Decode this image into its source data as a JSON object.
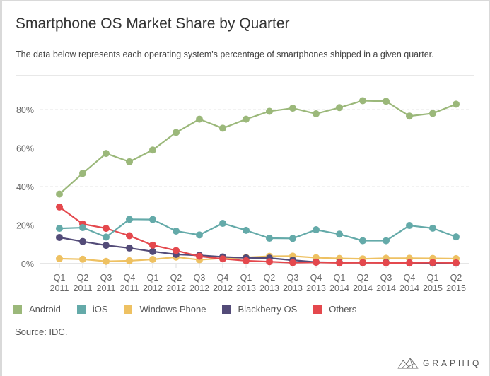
{
  "header": {
    "title": "Smartphone OS Market Share by Quarter",
    "subtitle": "The data below represents each operating system's percentage of smartphones shipped in a given quarter."
  },
  "source": {
    "label": "Source: ",
    "link_text": "IDC",
    "suffix": "."
  },
  "brand": {
    "name": "GRAPHIQ",
    "icon": "graphiq-logo-icon"
  },
  "chart_data": {
    "type": "line",
    "title": "Smartphone OS Market Share by Quarter",
    "xlabel": "",
    "ylabel": "",
    "ylim": [
      0,
      80
    ],
    "yticks": [
      0,
      20,
      40,
      60,
      80
    ],
    "ytick_labels": [
      "0%",
      "20%",
      "40%",
      "60%",
      "80%"
    ],
    "grid": true,
    "legend_position": "bottom",
    "categories": [
      [
        "Q1",
        "2011"
      ],
      [
        "Q2",
        "2011"
      ],
      [
        "Q3",
        "2011"
      ],
      [
        "Q4",
        "2011"
      ],
      [
        "Q1",
        "2012"
      ],
      [
        "Q2",
        "2012"
      ],
      [
        "Q3",
        "2012"
      ],
      [
        "Q4",
        "2012"
      ],
      [
        "Q1",
        "2013"
      ],
      [
        "Q2",
        "2013"
      ],
      [
        "Q3",
        "2013"
      ],
      [
        "Q4",
        "2013"
      ],
      [
        "Q1",
        "2014"
      ],
      [
        "Q2",
        "2014"
      ],
      [
        "Q3",
        "2014"
      ],
      [
        "Q4",
        "2014"
      ],
      [
        "Q1",
        "2015"
      ],
      [
        "Q2",
        "2015"
      ]
    ],
    "series": [
      {
        "name": "Android",
        "color": "#9bb87a",
        "values": [
          36.1,
          46.9,
          57.2,
          52.9,
          59.0,
          68.1,
          75.0,
          70.3,
          75.0,
          79.1,
          80.7,
          77.8,
          81.0,
          84.6,
          84.3,
          76.6,
          78.0,
          82.8
        ]
      },
      {
        "name": "iOS",
        "color": "#64aaa9",
        "values": [
          18.3,
          18.7,
          13.8,
          23.0,
          22.9,
          16.9,
          14.9,
          20.9,
          17.3,
          13.2,
          13.1,
          17.6,
          15.3,
          11.9,
          11.9,
          19.8,
          18.4,
          13.9
        ]
      },
      {
        "name": "Windows Phone",
        "color": "#eec162",
        "values": [
          2.6,
          2.3,
          1.2,
          1.5,
          2.2,
          3.4,
          2.0,
          2.8,
          3.2,
          3.8,
          3.9,
          3.1,
          2.7,
          2.5,
          2.8,
          2.8,
          2.7,
          2.6
        ]
      },
      {
        "name": "Blackberry OS",
        "color": "#534b78",
        "values": [
          13.6,
          11.5,
          9.5,
          8.1,
          6.3,
          4.8,
          4.3,
          3.5,
          3.0,
          2.9,
          1.8,
          0.8,
          0.6,
          0.5,
          0.6,
          0.4,
          0.3,
          0.3
        ]
      },
      {
        "name": "Others",
        "color": "#e4484d",
        "values": [
          29.4,
          20.6,
          18.3,
          14.5,
          9.6,
          6.8,
          3.8,
          2.5,
          1.5,
          1.0,
          0.5,
          0.7,
          0.4,
          0.5,
          0.4,
          0.4,
          0.6,
          0.4
        ]
      }
    ]
  }
}
